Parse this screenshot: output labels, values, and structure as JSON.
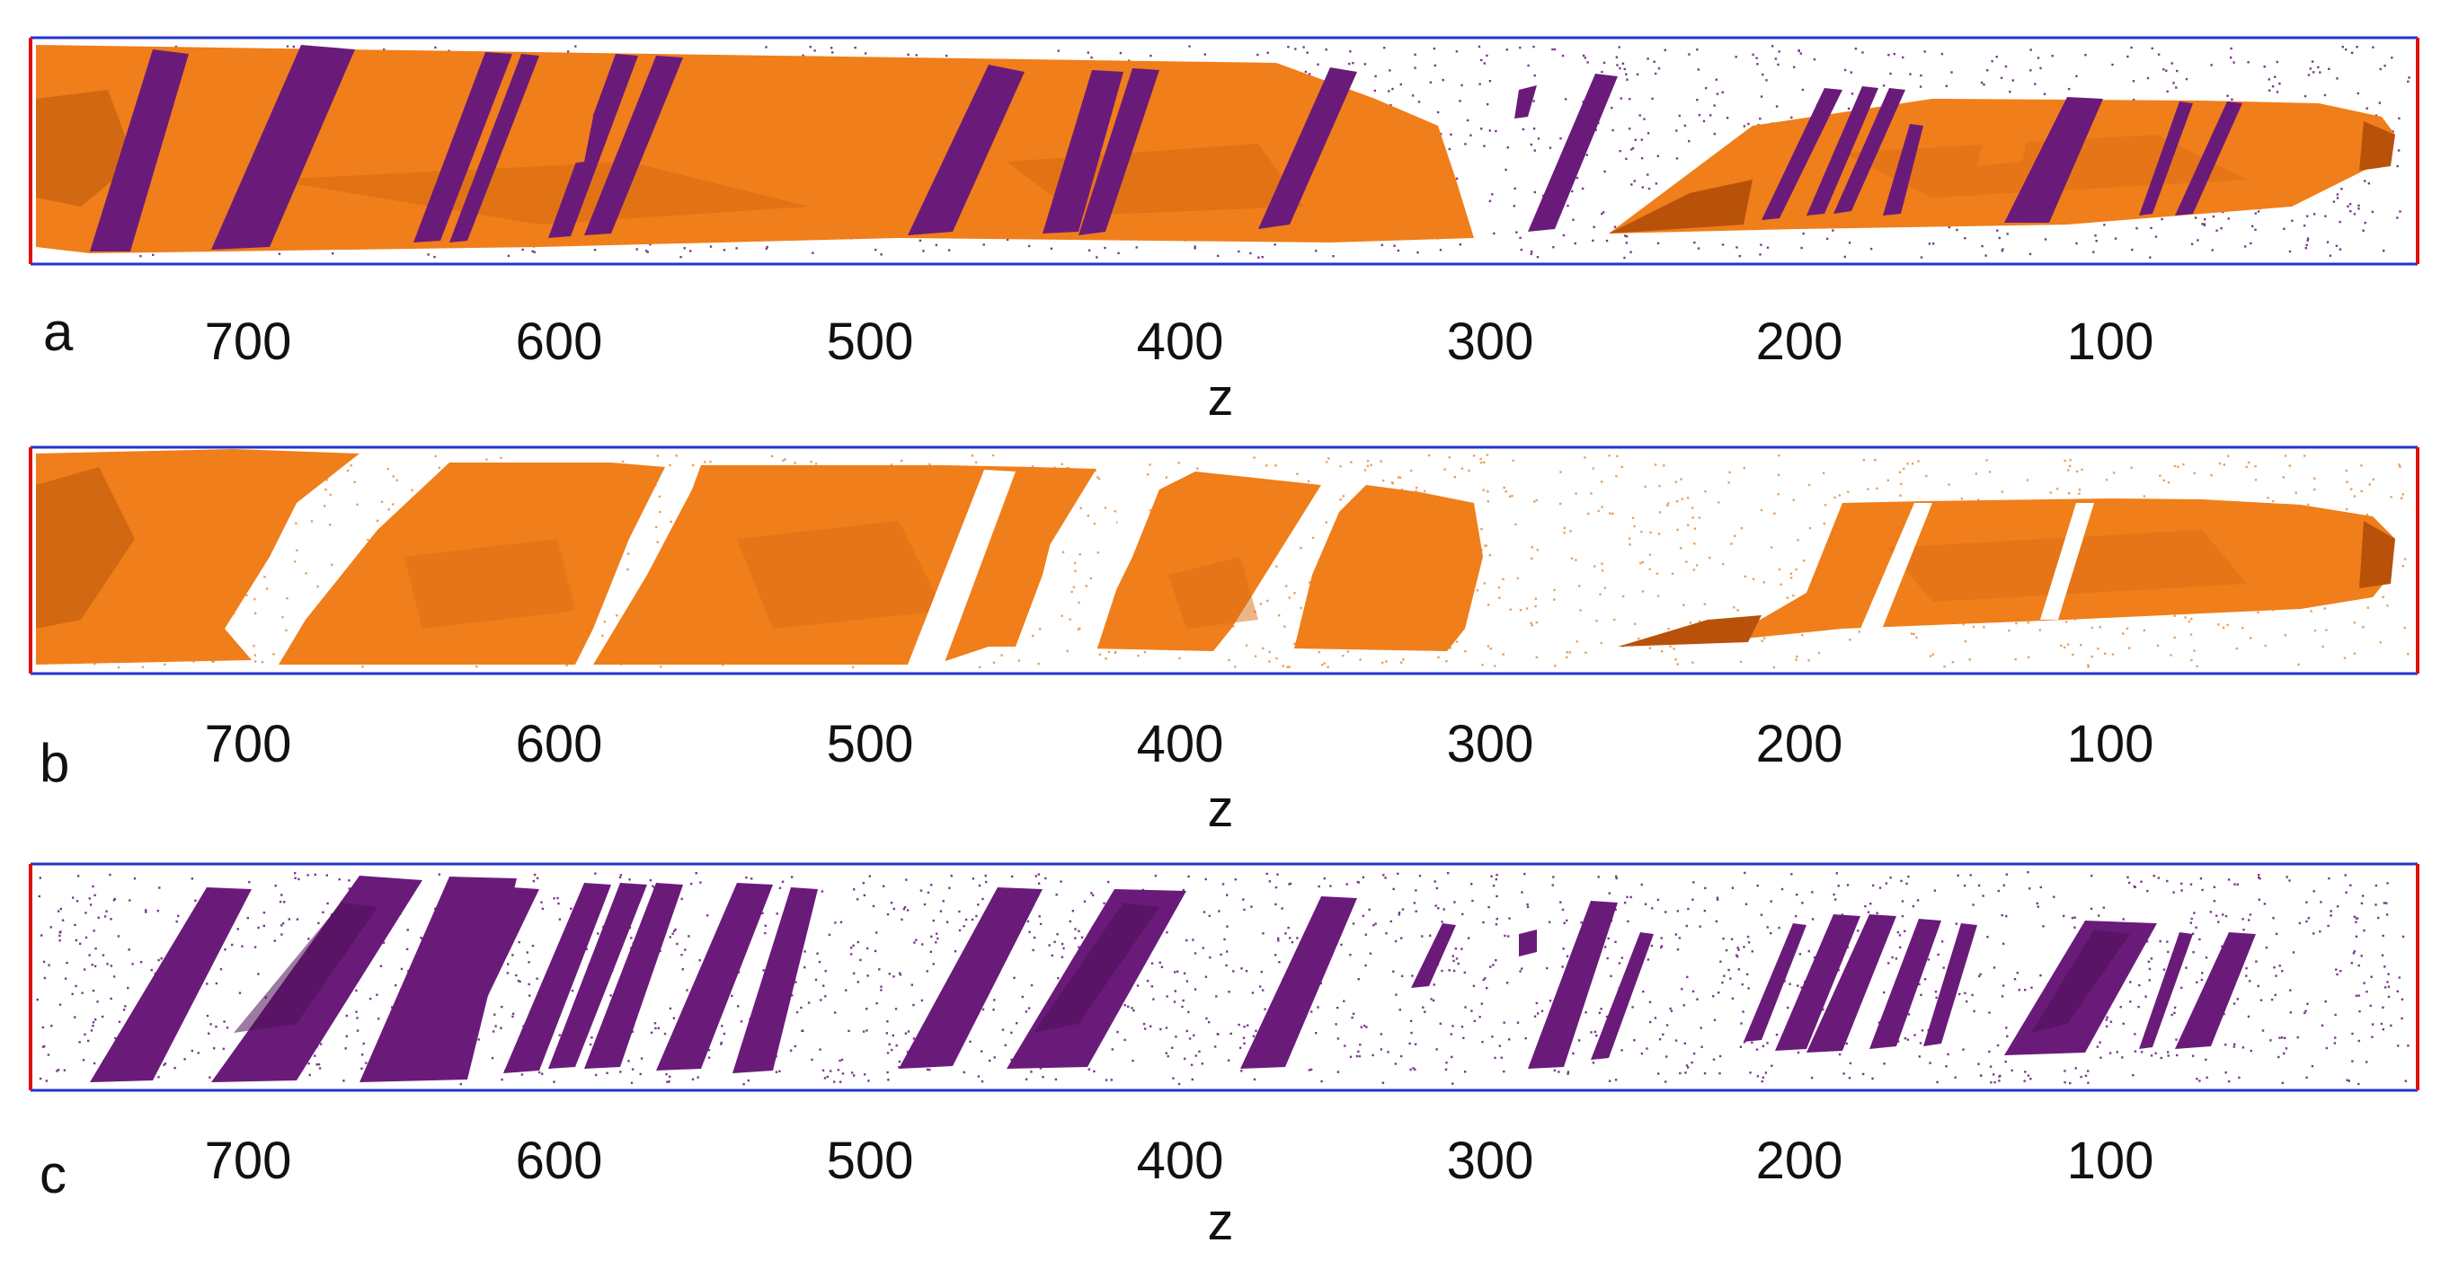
{
  "figure": {
    "panels": [
      {
        "letter": "a",
        "content": "orange-and-purple"
      },
      {
        "letter": "b",
        "content": "orange"
      },
      {
        "letter": "c",
        "content": "purple"
      }
    ],
    "axis": {
      "label": "z",
      "ticks": [
        "700",
        "600",
        "500",
        "400",
        "300",
        "200",
        "100"
      ],
      "range": [
        780,
        0
      ]
    },
    "colors": {
      "orange": "#F07E1A",
      "orange_dark": "#B8520A",
      "purple": "#6A1B7A",
      "purple_dark": "#4A0E56",
      "frame_long": "#2233CC",
      "frame_short": "#E01010",
      "dots_orange": "#E8A060",
      "dots_purple": "#7A3A8A"
    }
  }
}
